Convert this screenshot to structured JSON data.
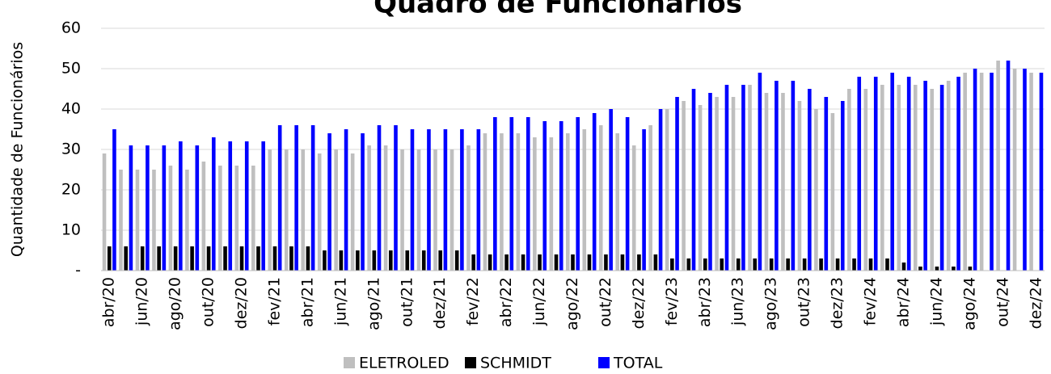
{
  "chart_data": {
    "type": "bar",
    "title": "Quadro de Funcionários",
    "ylabel": "Quantidade de Funcionários",
    "categories": [
      "abr/20",
      null,
      "jun/20",
      null,
      "ago/20",
      null,
      "out/20",
      null,
      "dez/20",
      null,
      "fev/21",
      null,
      "abr/21",
      null,
      "jun/21",
      null,
      "ago/21",
      null,
      "out/21",
      null,
      "dez/21",
      null,
      "fev/22",
      null,
      "abr/22",
      null,
      "jun/22",
      null,
      "ago/22",
      null,
      "out/22",
      null,
      "dez/22",
      null,
      "fev/23",
      null,
      "abr/23",
      null,
      "jun/23",
      null,
      "ago/23",
      null,
      "out/23",
      null,
      "dez/23",
      null,
      "fev/24",
      null,
      "abr/24",
      null,
      "jun/24",
      null,
      "ago/24",
      null,
      "out/24",
      null,
      "dez/24"
    ],
    "series": [
      {
        "name": "ELETROLED",
        "color": "#bfbfbf",
        "values": [
          29,
          25,
          25,
          25,
          26,
          25,
          27,
          26,
          26,
          26,
          30,
          30,
          30,
          29,
          30,
          29,
          31,
          31,
          30,
          30,
          30,
          30,
          31,
          34,
          34,
          34,
          33,
          33,
          34,
          35,
          36,
          34,
          31,
          36,
          40,
          42,
          41,
          43,
          43,
          46,
          44,
          44,
          42,
          40,
          39,
          45,
          45,
          46,
          46,
          46,
          45,
          47,
          49,
          49,
          52,
          50,
          49
        ]
      },
      {
        "name": "SCHMIDT",
        "color": "#000000",
        "values": [
          6,
          6,
          6,
          6,
          6,
          6,
          6,
          6,
          6,
          6,
          6,
          6,
          6,
          5,
          5,
          5,
          5,
          5,
          5,
          5,
          5,
          5,
          4,
          4,
          4,
          4,
          4,
          4,
          4,
          4,
          4,
          4,
          4,
          4,
          3,
          3,
          3,
          3,
          3,
          3,
          3,
          3,
          3,
          3,
          3,
          3,
          3,
          3,
          2,
          1,
          1,
          1,
          1,
          0,
          0,
          0,
          0
        ]
      },
      {
        "name": "TOTAL",
        "color": "#0000ff",
        "values": [
          35,
          31,
          31,
          31,
          32,
          31,
          33,
          32,
          32,
          32,
          36,
          36,
          36,
          34,
          35,
          34,
          36,
          36,
          35,
          35,
          35,
          35,
          35,
          38,
          38,
          38,
          37,
          37,
          38,
          39,
          40,
          38,
          35,
          40,
          43,
          45,
          44,
          46,
          46,
          49,
          47,
          47,
          45,
          43,
          42,
          48,
          48,
          49,
          48,
          47,
          46,
          48,
          50,
          49,
          52,
          50,
          49
        ]
      }
    ],
    "ylim": [
      0,
      60
    ],
    "yticks": [
      {
        "value": 0,
        "label": "-"
      },
      10,
      20,
      30,
      40,
      50,
      60
    ],
    "grid": true,
    "legend": "bottom"
  }
}
